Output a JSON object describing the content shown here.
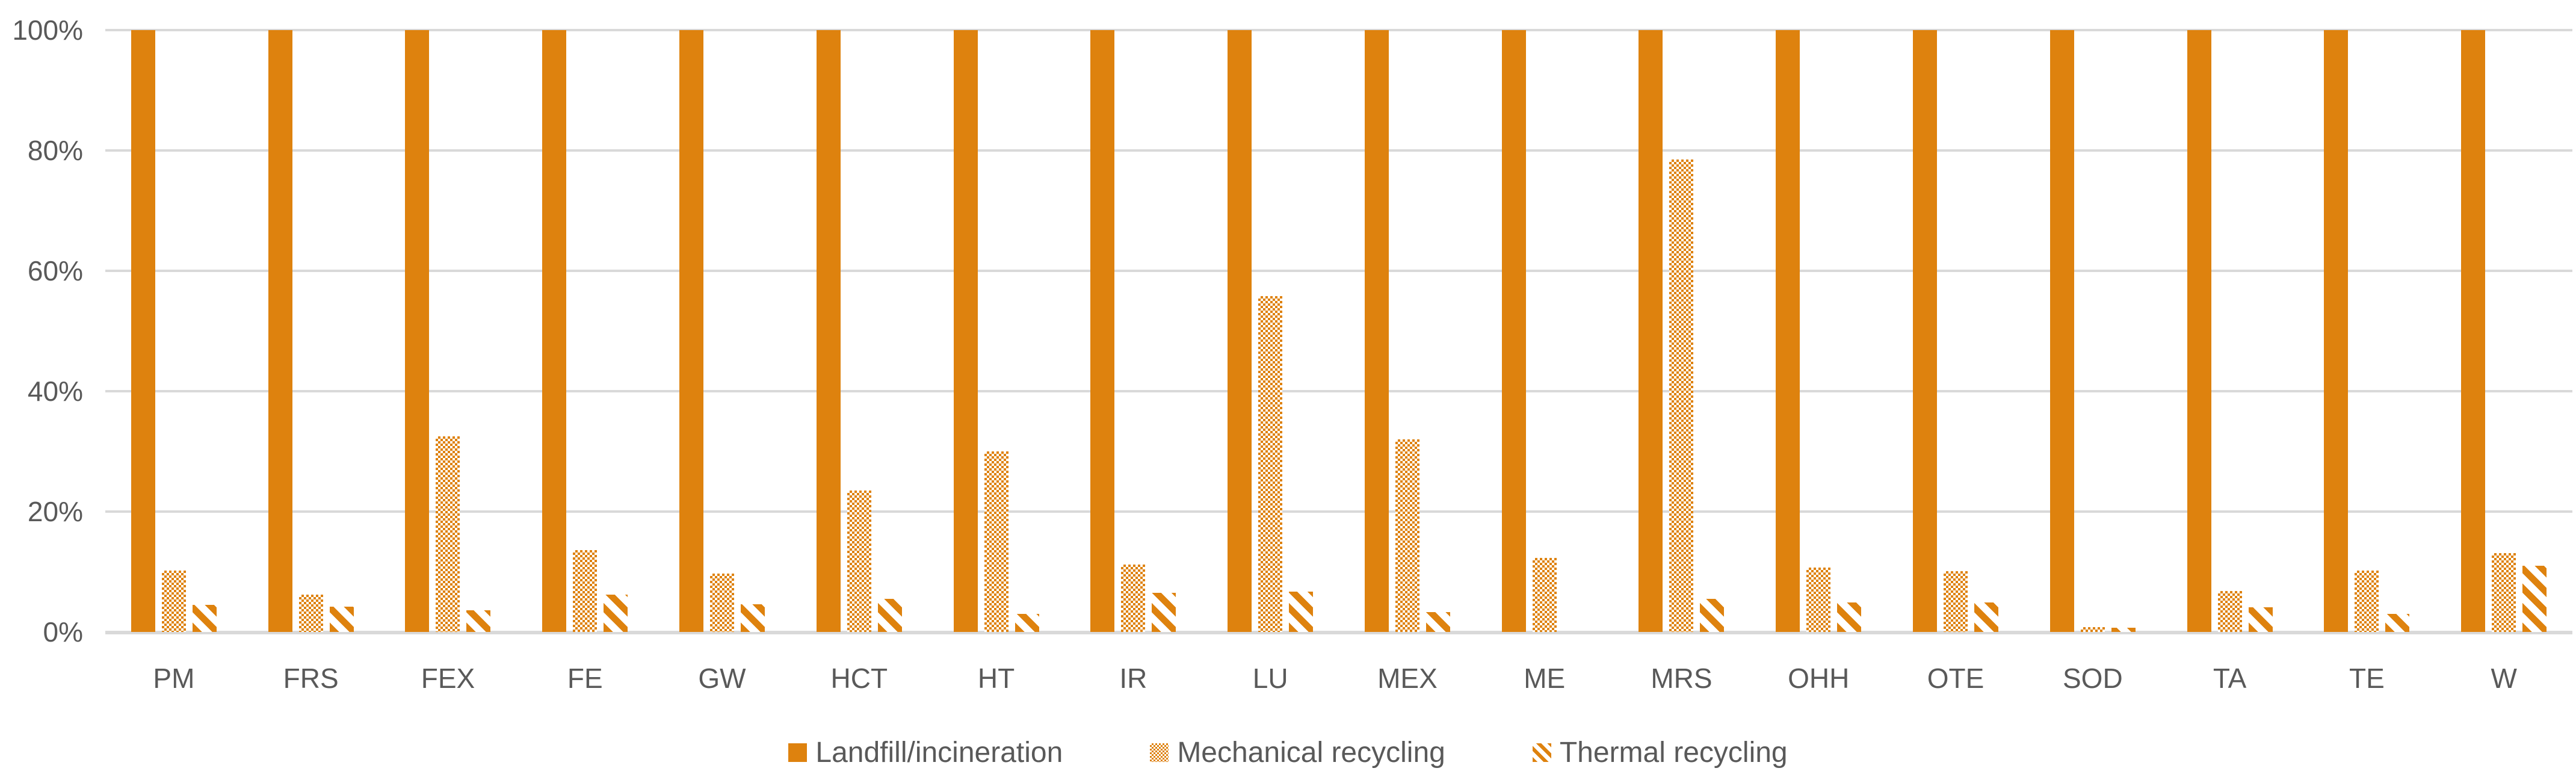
{
  "chart_data": {
    "type": "bar",
    "title": "",
    "xlabel": "",
    "ylabel": "",
    "ylim": [
      0,
      100
    ],
    "grid": true,
    "legend_position": "bottom-center",
    "yticks": [
      "0%",
      "20%",
      "40%",
      "60%",
      "80%",
      "100%"
    ],
    "categories": [
      "PM",
      "FRS",
      "FEX",
      "FE",
      "GW",
      "HCT",
      "HT",
      "IR",
      "LU",
      "MEX",
      "ME",
      "MRS",
      "OHH",
      "OTE",
      "SOD",
      "TA",
      "TE",
      "W"
    ],
    "series": [
      {
        "name": "Landfill/incineration",
        "pattern": "solid",
        "values": [
          100,
          100,
          100,
          100,
          100,
          100,
          100,
          100,
          100,
          100,
          100,
          100,
          100,
          100,
          100,
          100,
          100,
          100
        ]
      },
      {
        "name": "Mechanical recycling",
        "pattern": "checker",
        "values": [
          10.2,
          6.2,
          32.5,
          13.6,
          9.7,
          23.5,
          30.0,
          11.2,
          55.8,
          32.0,
          12.3,
          78.5,
          10.7,
          10.1,
          0.8,
          6.8,
          10.2,
          13.1
        ]
      },
      {
        "name": "Thermal recycling",
        "pattern": "diagonal-stripes",
        "values": [
          4.5,
          4.2,
          3.6,
          6.2,
          4.6,
          5.5,
          3.0,
          6.5,
          6.7,
          3.3,
          0,
          5.5,
          4.9,
          4.9,
          0.7,
          4.1,
          3.0,
          11.0
        ]
      }
    ],
    "colors": {
      "series_orange": "#DE820E",
      "gridline": "#D9D9D9",
      "axis_text": "#595959",
      "background": "#FFFFFF"
    }
  }
}
